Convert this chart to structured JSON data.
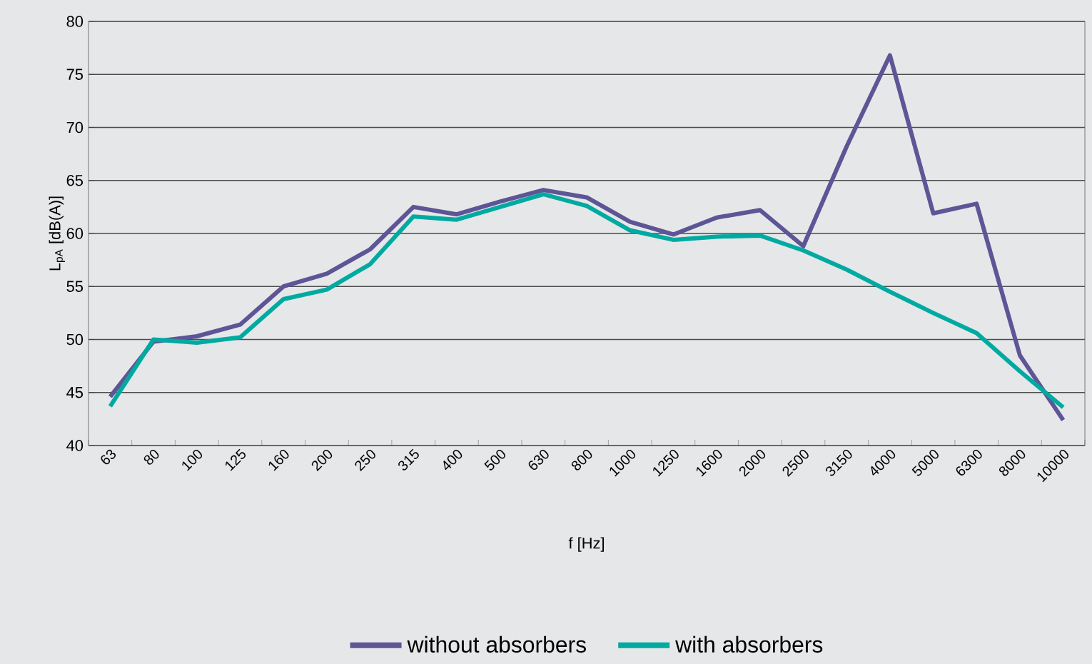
{
  "chart_data": {
    "type": "line",
    "xlabel": "f  [Hz]",
    "ylabel": "L$_{pA}$ [dB(A)]",
    "categories": [
      "63",
      "80",
      "100",
      "125",
      "160",
      "200",
      "250",
      "315",
      "400",
      "500",
      "630",
      "800",
      "1000",
      "1250",
      "1600",
      "2000",
      "2500",
      "3150",
      "4000",
      "5000",
      "6300",
      "8000",
      "10000"
    ],
    "series": [
      {
        "name": "without absorbers",
        "color": "#5e5596",
        "values": [
          44.6,
          49.8,
          50.3,
          51.4,
          55.0,
          56.2,
          58.5,
          62.5,
          61.8,
          63.0,
          64.1,
          63.4,
          61.1,
          59.9,
          61.5,
          62.2,
          58.8,
          68.2,
          76.8,
          61.9,
          62.8,
          48.5,
          42.4
        ]
      },
      {
        "name": "with absorbers",
        "color": "#00aaa0",
        "values": [
          43.7,
          50.0,
          49.7,
          50.2,
          53.8,
          54.7,
          57.1,
          61.6,
          61.3,
          62.5,
          63.7,
          62.6,
          60.3,
          59.4,
          59.7,
          59.8,
          58.4,
          56.6,
          54.5,
          52.5,
          50.6,
          47.0,
          43.6
        ]
      }
    ],
    "ylim": [
      40,
      80
    ],
    "yticks": [
      40,
      45,
      50,
      55,
      60,
      65,
      70,
      75,
      80
    ],
    "grid": "y",
    "legend": "bottom"
  }
}
